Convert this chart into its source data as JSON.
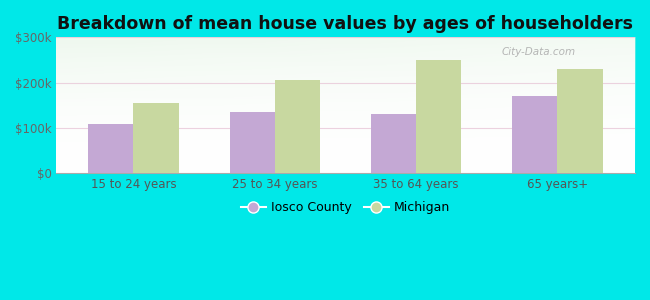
{
  "title": "Breakdown of mean house values by ages of householders",
  "categories": [
    "15 to 24 years",
    "25 to 34 years",
    "35 to 64 years",
    "65 years+"
  ],
  "iosco_values": [
    110000,
    135000,
    130000,
    170000
  ],
  "michigan_values": [
    155000,
    205000,
    250000,
    230000
  ],
  "iosco_color": "#c4a8d4",
  "michigan_color": "#c8d8a0",
  "background_color": "#00e8e8",
  "ylim": [
    0,
    300000
  ],
  "yticks": [
    0,
    100000,
    200000,
    300000
  ],
  "ytick_labels": [
    "$0",
    "$100k",
    "$200k",
    "$300k"
  ],
  "bar_width": 0.32,
  "title_fontsize": 12.5,
  "legend_labels": [
    "Iosco County",
    "Michigan"
  ],
  "watermark": "City-Data.com"
}
